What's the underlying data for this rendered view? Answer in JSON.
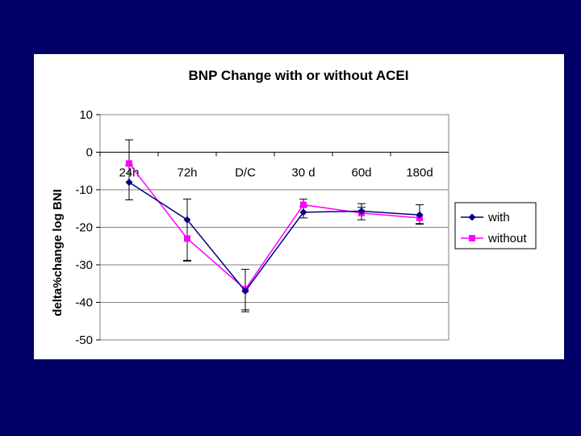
{
  "colors": {
    "background": "#000066",
    "panel": "#ffffff",
    "series_with": "#000080",
    "series_without": "#ff00ff",
    "error_bar": "#000000",
    "grid": "#808080"
  },
  "chart_data": {
    "type": "line",
    "title": "BNP Change with or without ACEI",
    "xlabel": "",
    "ylabel": "delta%change log BNI",
    "categories": [
      "24h",
      "72h",
      "D/C",
      "30 d",
      "60d",
      "180d"
    ],
    "ylim": [
      -50,
      10
    ],
    "yticks": [
      10,
      0,
      -10,
      -20,
      -30,
      -40,
      -50
    ],
    "grid": "horizontal",
    "legend_position": "right",
    "series": [
      {
        "name": "with",
        "marker": "diamond",
        "values": [
          -8,
          -18,
          -37,
          -16,
          -15.7,
          -16.7
        ],
        "error_low": [
          -12.7,
          -29,
          -42.5,
          -17.5,
          -18,
          -19.2
        ],
        "error_high": [
          -3.5,
          -12.5,
          -31.2,
          -14.5,
          -13.7,
          -14
        ]
      },
      {
        "name": "without",
        "marker": "square",
        "values": [
          -3,
          -23,
          -36.5,
          -14,
          -16.2,
          -17.5
        ],
        "error_low": [
          -3,
          -28.8,
          -42,
          -14,
          -16.2,
          -19
        ],
        "error_high": [
          3.3,
          -23,
          -36.5,
          -12.5,
          -14.7,
          -17.5
        ]
      }
    ]
  }
}
